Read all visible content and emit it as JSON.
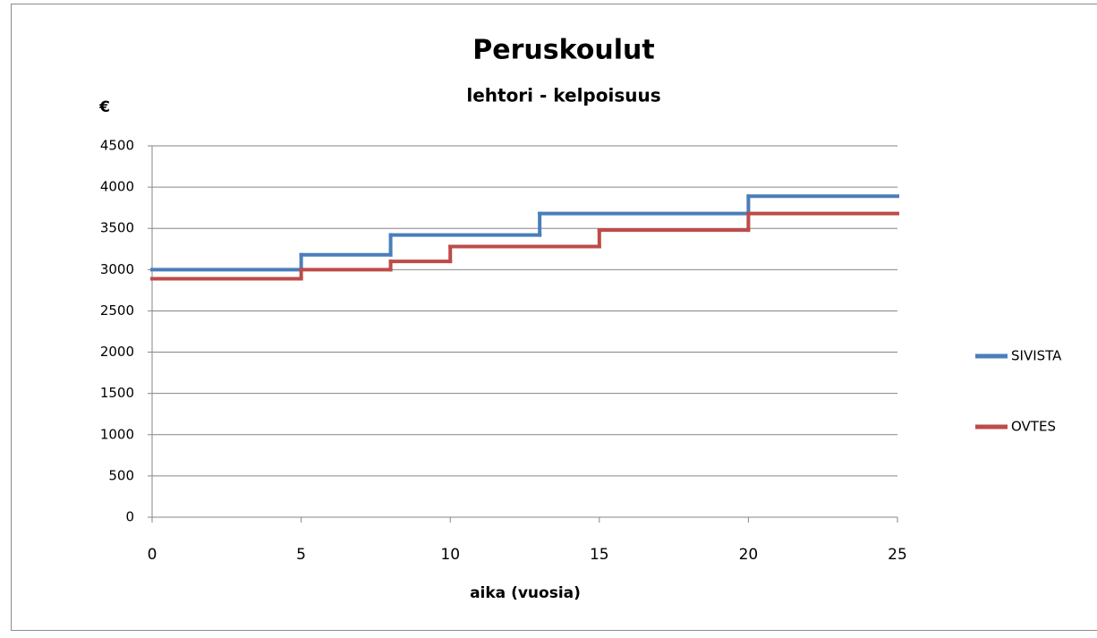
{
  "chart_data": {
    "type": "line",
    "step": "post",
    "title": "Peruskoulut",
    "subtitle": "lehtori - kelpoisuus",
    "y_label": "€",
    "x_label": "aika  (vuosia)",
    "series": [
      {
        "name": "SIVISTA",
        "color": "#4a7ebb",
        "x": [
          0,
          5,
          8,
          13,
          20
        ],
        "values": [
          3000,
          3180,
          3420,
          3680,
          3890
        ]
      },
      {
        "name": "OVTES",
        "color": "#be4b48",
        "x": [
          0,
          5,
          8,
          10,
          15,
          20
        ],
        "values": [
          2890,
          3000,
          3100,
          3280,
          3480,
          3680
        ]
      }
    ],
    "xlim": [
      0,
      25
    ],
    "xticks": [
      0,
      5,
      10,
      15,
      20,
      25
    ],
    "ylim": [
      0,
      4500
    ],
    "yticks": [
      0,
      500,
      1000,
      1500,
      2000,
      2500,
      3000,
      3500,
      4000,
      4500
    ],
    "grid": true,
    "legend": "right"
  }
}
